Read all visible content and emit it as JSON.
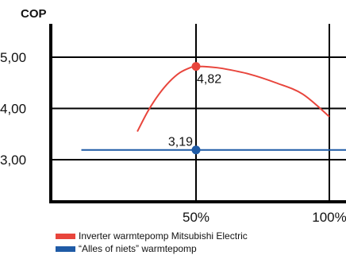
{
  "chart_data": {
    "type": "line",
    "ylabel": "COP",
    "xlabel": "",
    "xlim": [
      0,
      110
    ],
    "ylim": [
      2.45,
      5.5
    ],
    "x_ticks": [
      {
        "value": 50,
        "label": "50%"
      },
      {
        "value": 100,
        "label": "100%"
      }
    ],
    "y_ticks": [
      {
        "value": 3.0,
        "label": "3,00"
      },
      {
        "value": 4.0,
        "label": "4,00"
      },
      {
        "value": 5.0,
        "label": "5,00"
      }
    ],
    "grid": true,
    "legend_position": "bottom",
    "series": [
      {
        "name": "Inverter warmtepomp Mitsubishi Electric",
        "color": "#e8453c",
        "x": [
          28,
          32,
          36,
          40,
          44,
          48,
          50,
          55,
          60,
          70,
          80,
          90,
          100
        ],
        "y": [
          3.55,
          3.95,
          4.27,
          4.52,
          4.7,
          4.8,
          4.82,
          4.81,
          4.78,
          4.67,
          4.5,
          4.28,
          3.84
        ]
      },
      {
        "name": "“Alles of niets” warmtepomp",
        "color": "#1f5ba6",
        "x": [
          7,
          110
        ],
        "y": [
          3.19,
          3.19
        ]
      }
    ],
    "highlight_points": [
      {
        "series": 0,
        "x": 50,
        "y": 4.82,
        "label": "4,82",
        "color": "#e8453c"
      },
      {
        "series": 1,
        "x": 50,
        "y": 3.19,
        "label": "3,19",
        "color": "#1f5ba6"
      }
    ]
  }
}
